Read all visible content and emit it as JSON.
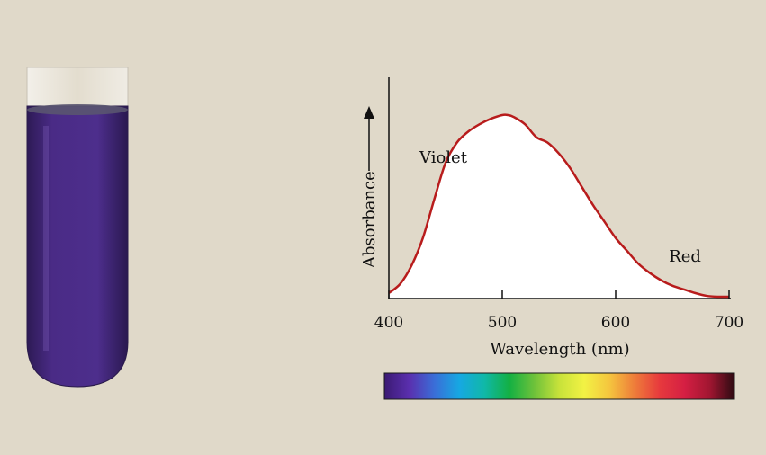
{
  "colors": {
    "background": "#e0d9c9",
    "curve": "#b81c1c",
    "solution": "#4a2b86"
  },
  "chart_data": {
    "type": "line",
    "xlabel": "Wavelength (nm)",
    "ylabel": "Absorbance",
    "xlim": [
      400,
      700
    ],
    "ylim": [
      0,
      1
    ],
    "xticks": [
      400,
      500,
      600,
      700
    ],
    "annotations": [
      {
        "text": "Violet",
        "x": 427,
        "y": 0.74
      },
      {
        "text": "Red",
        "x": 647,
        "y": 0.2
      }
    ],
    "series": [
      {
        "x": [
          400,
          410,
          420,
          430,
          440,
          450,
          460,
          470,
          480,
          490,
          500,
          505,
          510,
          520,
          530,
          540,
          550,
          560,
          570,
          580,
          590,
          600,
          610,
          620,
          630,
          640,
          650,
          660,
          670,
          680,
          690,
          700
        ],
        "y": [
          0.03,
          0.08,
          0.18,
          0.33,
          0.54,
          0.74,
          0.85,
          0.91,
          0.95,
          0.98,
          1.0,
          1.0,
          0.99,
          0.95,
          0.88,
          0.85,
          0.79,
          0.71,
          0.61,
          0.51,
          0.42,
          0.33,
          0.26,
          0.19,
          0.14,
          0.1,
          0.07,
          0.05,
          0.03,
          0.015,
          0.01,
          0.01
        ]
      }
    ],
    "color_bar": {
      "wavelength_range": [
        400,
        700
      ],
      "stops": [
        "#3b1a73",
        "#5a2fae",
        "#3a6ed8",
        "#16a8e2",
        "#10b8a8",
        "#13b043",
        "#6fc23a",
        "#c8e23a",
        "#f2f244",
        "#f5c53e",
        "#ee7d3a",
        "#e73a3d",
        "#d51f43",
        "#a11631",
        "#2d0b12"
      ]
    },
    "grid": false
  }
}
